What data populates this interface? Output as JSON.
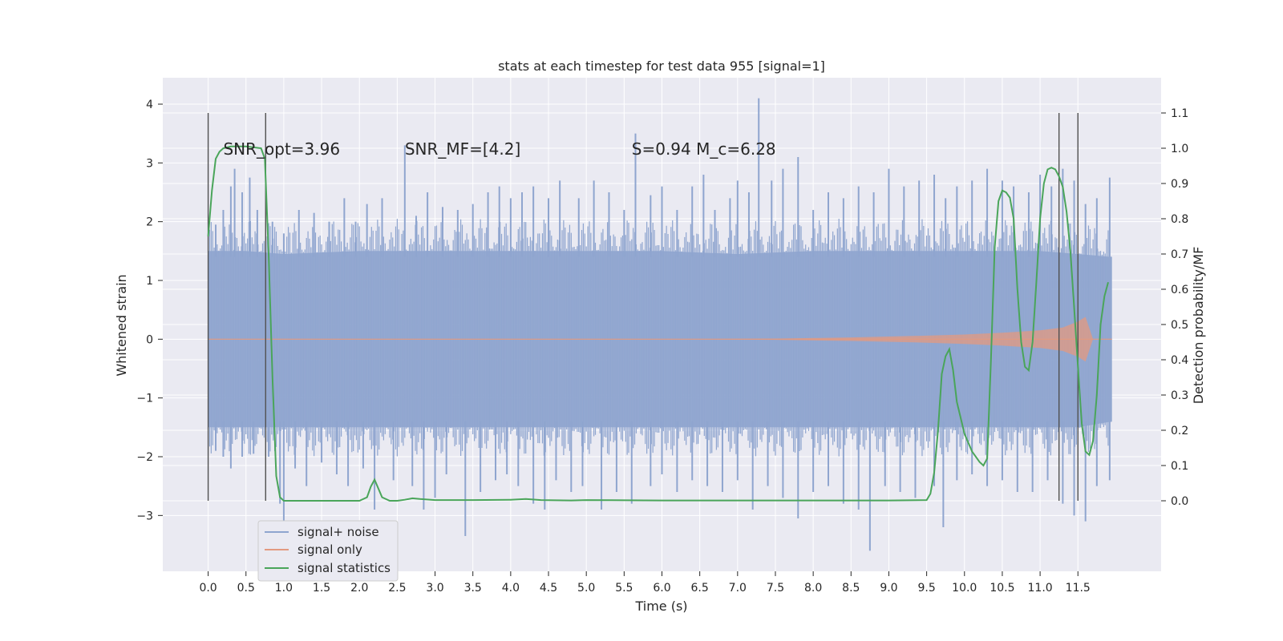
{
  "chart_data": {
    "type": "line",
    "title": "stats at each timestep for test data 955 [signal=1]",
    "xlabel": "Time (s)",
    "ylabel": "Whitened strain",
    "y2label": "Detection probability/MF",
    "xlim": [
      -0.6,
      12.6
    ],
    "ylim": [
      -3.95,
      4.45
    ],
    "y2lim": [
      -0.2,
      1.2
    ],
    "xticks": [
      0.0,
      0.5,
      1.0,
      1.5,
      2.0,
      2.5,
      3.0,
      3.5,
      4.0,
      4.5,
      5.0,
      5.5,
      6.0,
      6.5,
      7.0,
      7.5,
      8.0,
      8.5,
      9.0,
      9.5,
      10.0,
      10.5,
      11.0,
      11.5
    ],
    "xtick_labels": [
      "0.0",
      "0.5",
      "1.0",
      "1.5",
      "2.0",
      "2.5",
      "3.0",
      "3.5",
      "4.0",
      "4.5",
      "5.0",
      "5.5",
      "6.0",
      "6.5",
      "7.0",
      "7.5",
      "8.0",
      "8.5",
      "9.0",
      "9.5",
      "10.0",
      "10.5",
      "11.0",
      "11.5"
    ],
    "yticks": [
      -3,
      -2,
      -1,
      0,
      1,
      2,
      3,
      4
    ],
    "ytick_labels": [
      "−3",
      "−2",
      "−1",
      "0",
      "1",
      "2",
      "3",
      "4"
    ],
    "y2ticks": [
      0.0,
      0.1,
      0.2,
      0.3,
      0.4,
      0.5,
      0.6,
      0.7,
      0.8,
      0.9,
      1.0,
      1.1
    ],
    "y2tick_labels": [
      "0.0",
      "0.1",
      "0.2",
      "0.3",
      "0.4",
      "0.5",
      "0.6",
      "0.7",
      "0.8",
      "0.9",
      "1.0",
      "1.1"
    ],
    "grid": true,
    "legend_position": "lower-left",
    "annotations": [
      {
        "text": "SNR_opt=3.96",
        "x": 0.2,
        "y2": 1.0
      },
      {
        "text": "SNR_MF=[4.2]",
        "x": 2.6,
        "y2": 1.0
      },
      {
        "text": "S=0.94   M_c=6.28",
        "x": 5.6,
        "y2": 1.0
      }
    ],
    "vertical_markers": [
      0.0,
      0.76,
      11.25,
      11.5
    ],
    "series": [
      {
        "name": "signal+ noise",
        "axis": "left",
        "color": "#8fa5cf",
        "band_envelope": {
          "x": [
            0.0,
            0.5,
            1.0,
            2.0,
            3.0,
            4.0,
            5.0,
            6.0,
            7.0,
            8.0,
            9.0,
            10.0,
            11.0,
            11.5,
            11.95
          ],
          "upper": [
            1.5,
            1.5,
            1.45,
            1.5,
            1.5,
            1.5,
            1.5,
            1.5,
            1.45,
            1.5,
            1.5,
            1.5,
            1.5,
            1.45,
            1.4
          ],
          "lower": [
            -1.5,
            -1.5,
            -1.5,
            -1.5,
            -1.5,
            -1.5,
            -1.5,
            -1.5,
            -1.5,
            -1.5,
            -1.5,
            -1.5,
            -1.5,
            -1.5,
            -1.4
          ]
        },
        "spikes_up": [
          [
            0.1,
            1.95
          ],
          [
            0.2,
            2.2
          ],
          [
            0.3,
            2.6
          ],
          [
            0.35,
            2.9
          ],
          [
            0.45,
            2.5
          ],
          [
            0.55,
            2.75
          ],
          [
            0.65,
            2.2
          ],
          [
            0.85,
            2.0
          ],
          [
            1.0,
            1.8
          ],
          [
            1.2,
            2.2
          ],
          [
            1.4,
            2.15
          ],
          [
            1.6,
            2.0
          ],
          [
            1.8,
            2.4
          ],
          [
            1.95,
            2.0
          ],
          [
            2.1,
            2.3
          ],
          [
            2.3,
            2.4
          ],
          [
            2.6,
            3.3
          ],
          [
            2.75,
            2.1
          ],
          [
            2.9,
            2.5
          ],
          [
            3.1,
            2.25
          ],
          [
            3.3,
            2.2
          ],
          [
            3.5,
            2.3
          ],
          [
            3.7,
            2.5
          ],
          [
            3.85,
            2.6
          ],
          [
            4.0,
            2.4
          ],
          [
            4.15,
            2.5
          ],
          [
            4.3,
            2.6
          ],
          [
            4.5,
            2.4
          ],
          [
            4.65,
            2.7
          ],
          [
            4.9,
            2.4
          ],
          [
            5.1,
            2.7
          ],
          [
            5.3,
            2.5
          ],
          [
            5.5,
            2.2
          ],
          [
            5.65,
            3.5
          ],
          [
            5.85,
            2.45
          ],
          [
            6.0,
            2.6
          ],
          [
            6.2,
            2.2
          ],
          [
            6.4,
            2.6
          ],
          [
            6.55,
            2.8
          ],
          [
            6.7,
            2.2
          ],
          [
            6.9,
            2.4
          ],
          [
            7.0,
            2.7
          ],
          [
            7.15,
            2.5
          ],
          [
            7.28,
            4.1
          ],
          [
            7.45,
            2.7
          ],
          [
            7.6,
            2.9
          ],
          [
            7.8,
            3.1
          ],
          [
            8.0,
            2.2
          ],
          [
            8.2,
            2.5
          ],
          [
            8.4,
            2.4
          ],
          [
            8.6,
            2.6
          ],
          [
            8.8,
            2.5
          ],
          [
            9.0,
            2.9
          ],
          [
            9.2,
            2.6
          ],
          [
            9.4,
            2.7
          ],
          [
            9.6,
            2.8
          ],
          [
            9.75,
            2.4
          ],
          [
            9.9,
            2.6
          ],
          [
            10.1,
            2.7
          ],
          [
            10.3,
            2.9
          ],
          [
            10.5,
            2.7
          ],
          [
            10.65,
            2.6
          ],
          [
            10.85,
            2.5
          ],
          [
            11.0,
            2.8
          ],
          [
            11.15,
            2.6
          ],
          [
            11.3,
            2.9
          ],
          [
            11.45,
            2.7
          ],
          [
            11.6,
            2.3
          ],
          [
            11.75,
            2.4
          ],
          [
            11.92,
            2.75
          ]
        ],
        "spikes_down": [
          [
            0.1,
            -1.9
          ],
          [
            0.2,
            -2.0
          ],
          [
            0.3,
            -2.2
          ],
          [
            0.45,
            -2.0
          ],
          [
            0.6,
            -1.95
          ],
          [
            0.8,
            -2.0
          ],
          [
            0.95,
            -2.8
          ],
          [
            1.0,
            -3.1
          ],
          [
            1.15,
            -2.2
          ],
          [
            1.3,
            -2.5
          ],
          [
            1.5,
            -2.1
          ],
          [
            1.7,
            -2.3
          ],
          [
            1.85,
            -2.5
          ],
          [
            2.05,
            -2.2
          ],
          [
            2.2,
            -2.9
          ],
          [
            2.45,
            -2.4
          ],
          [
            2.7,
            -2.5
          ],
          [
            2.85,
            -2.9
          ],
          [
            3.0,
            -2.7
          ],
          [
            3.15,
            -2.3
          ],
          [
            3.4,
            -3.35
          ],
          [
            3.6,
            -2.6
          ],
          [
            3.8,
            -2.4
          ],
          [
            3.95,
            -2.3
          ],
          [
            4.1,
            -2.5
          ],
          [
            4.3,
            -2.8
          ],
          [
            4.45,
            -2.9
          ],
          [
            4.6,
            -2.4
          ],
          [
            4.8,
            -2.6
          ],
          [
            4.95,
            -2.5
          ],
          [
            5.2,
            -2.9
          ],
          [
            5.4,
            -2.6
          ],
          [
            5.6,
            -2.8
          ],
          [
            5.85,
            -2.5
          ],
          [
            6.0,
            -2.3
          ],
          [
            6.2,
            -2.6
          ],
          [
            6.4,
            -2.4
          ],
          [
            6.6,
            -2.5
          ],
          [
            6.8,
            -2.6
          ],
          [
            7.0,
            -2.4
          ],
          [
            7.2,
            -2.9
          ],
          [
            7.4,
            -2.5
          ],
          [
            7.6,
            -2.7
          ],
          [
            7.8,
            -3.05
          ],
          [
            8.0,
            -2.6
          ],
          [
            8.2,
            -2.5
          ],
          [
            8.4,
            -2.8
          ],
          [
            8.6,
            -2.9
          ],
          [
            8.75,
            -3.6
          ],
          [
            8.95,
            -2.5
          ],
          [
            9.15,
            -2.6
          ],
          [
            9.35,
            -2.7
          ],
          [
            9.6,
            -2.5
          ],
          [
            9.72,
            -3.2
          ],
          [
            9.9,
            -2.4
          ],
          [
            10.1,
            -2.3
          ],
          [
            10.3,
            -2.5
          ],
          [
            10.5,
            -2.4
          ],
          [
            10.7,
            -2.6
          ],
          [
            10.9,
            -2.6
          ],
          [
            11.1,
            -2.4
          ],
          [
            11.3,
            -2.8
          ],
          [
            11.45,
            -3.0
          ],
          [
            11.6,
            -3.1
          ],
          [
            11.75,
            -2.5
          ],
          [
            11.92,
            -2.4
          ]
        ]
      },
      {
        "name": "signal only",
        "axis": "left",
        "color": "#e39a80",
        "x": [
          0.0,
          6.0,
          7.5,
          8.5,
          9.5,
          10.0,
          10.5,
          11.0,
          11.3,
          11.5,
          11.6,
          11.7,
          11.95
        ],
        "upper": [
          0.0,
          0.0,
          0.01,
          0.03,
          0.06,
          0.08,
          0.11,
          0.15,
          0.2,
          0.3,
          0.38,
          0.0,
          0.0
        ],
        "lower": [
          0.0,
          0.0,
          -0.01,
          -0.03,
          -0.06,
          -0.08,
          -0.11,
          -0.15,
          -0.2,
          -0.3,
          -0.38,
          0.0,
          0.0
        ]
      },
      {
        "name": "signal statistics",
        "axis": "right",
        "color": "#4aa55a",
        "x": [
          0.0,
          0.05,
          0.1,
          0.15,
          0.2,
          0.3,
          0.5,
          0.7,
          0.75,
          0.8,
          0.85,
          0.9,
          0.95,
          1.0,
          1.5,
          2.0,
          2.1,
          2.15,
          2.2,
          2.3,
          2.4,
          2.5,
          2.6,
          2.7,
          2.8,
          3.0,
          3.5,
          4.0,
          4.2,
          4.4,
          4.8,
          5.0,
          6.0,
          7.0,
          8.0,
          9.0,
          9.5,
          9.55,
          9.6,
          9.65,
          9.7,
          9.75,
          9.8,
          9.85,
          9.9,
          10.0,
          10.1,
          10.2,
          10.25,
          10.3,
          10.35,
          10.4,
          10.45,
          10.5,
          10.55,
          10.6,
          10.65,
          10.7,
          10.75,
          10.8,
          10.85,
          10.9,
          10.95,
          11.0,
          11.05,
          11.1,
          11.15,
          11.2,
          11.25,
          11.3,
          11.35,
          11.4,
          11.45,
          11.5,
          11.55,
          11.6,
          11.65,
          11.7,
          11.75,
          11.8,
          11.85,
          11.9
        ],
        "values": [
          0.75,
          0.88,
          0.97,
          0.99,
          1.0,
          1.005,
          1.005,
          1.0,
          0.97,
          0.7,
          0.35,
          0.07,
          0.01,
          0.0,
          0.0,
          0.0,
          0.01,
          0.04,
          0.06,
          0.01,
          0.0,
          0.0,
          0.003,
          0.007,
          0.005,
          0.002,
          0.002,
          0.003,
          0.005,
          0.002,
          0.001,
          0.002,
          0.001,
          0.001,
          0.001,
          0.001,
          0.002,
          0.02,
          0.08,
          0.2,
          0.36,
          0.41,
          0.43,
          0.37,
          0.28,
          0.19,
          0.14,
          0.11,
          0.1,
          0.12,
          0.4,
          0.72,
          0.85,
          0.88,
          0.875,
          0.86,
          0.8,
          0.6,
          0.45,
          0.38,
          0.37,
          0.45,
          0.62,
          0.8,
          0.9,
          0.94,
          0.945,
          0.94,
          0.92,
          0.89,
          0.82,
          0.71,
          0.55,
          0.38,
          0.22,
          0.14,
          0.13,
          0.17,
          0.3,
          0.5,
          0.58,
          0.62
        ]
      }
    ]
  }
}
